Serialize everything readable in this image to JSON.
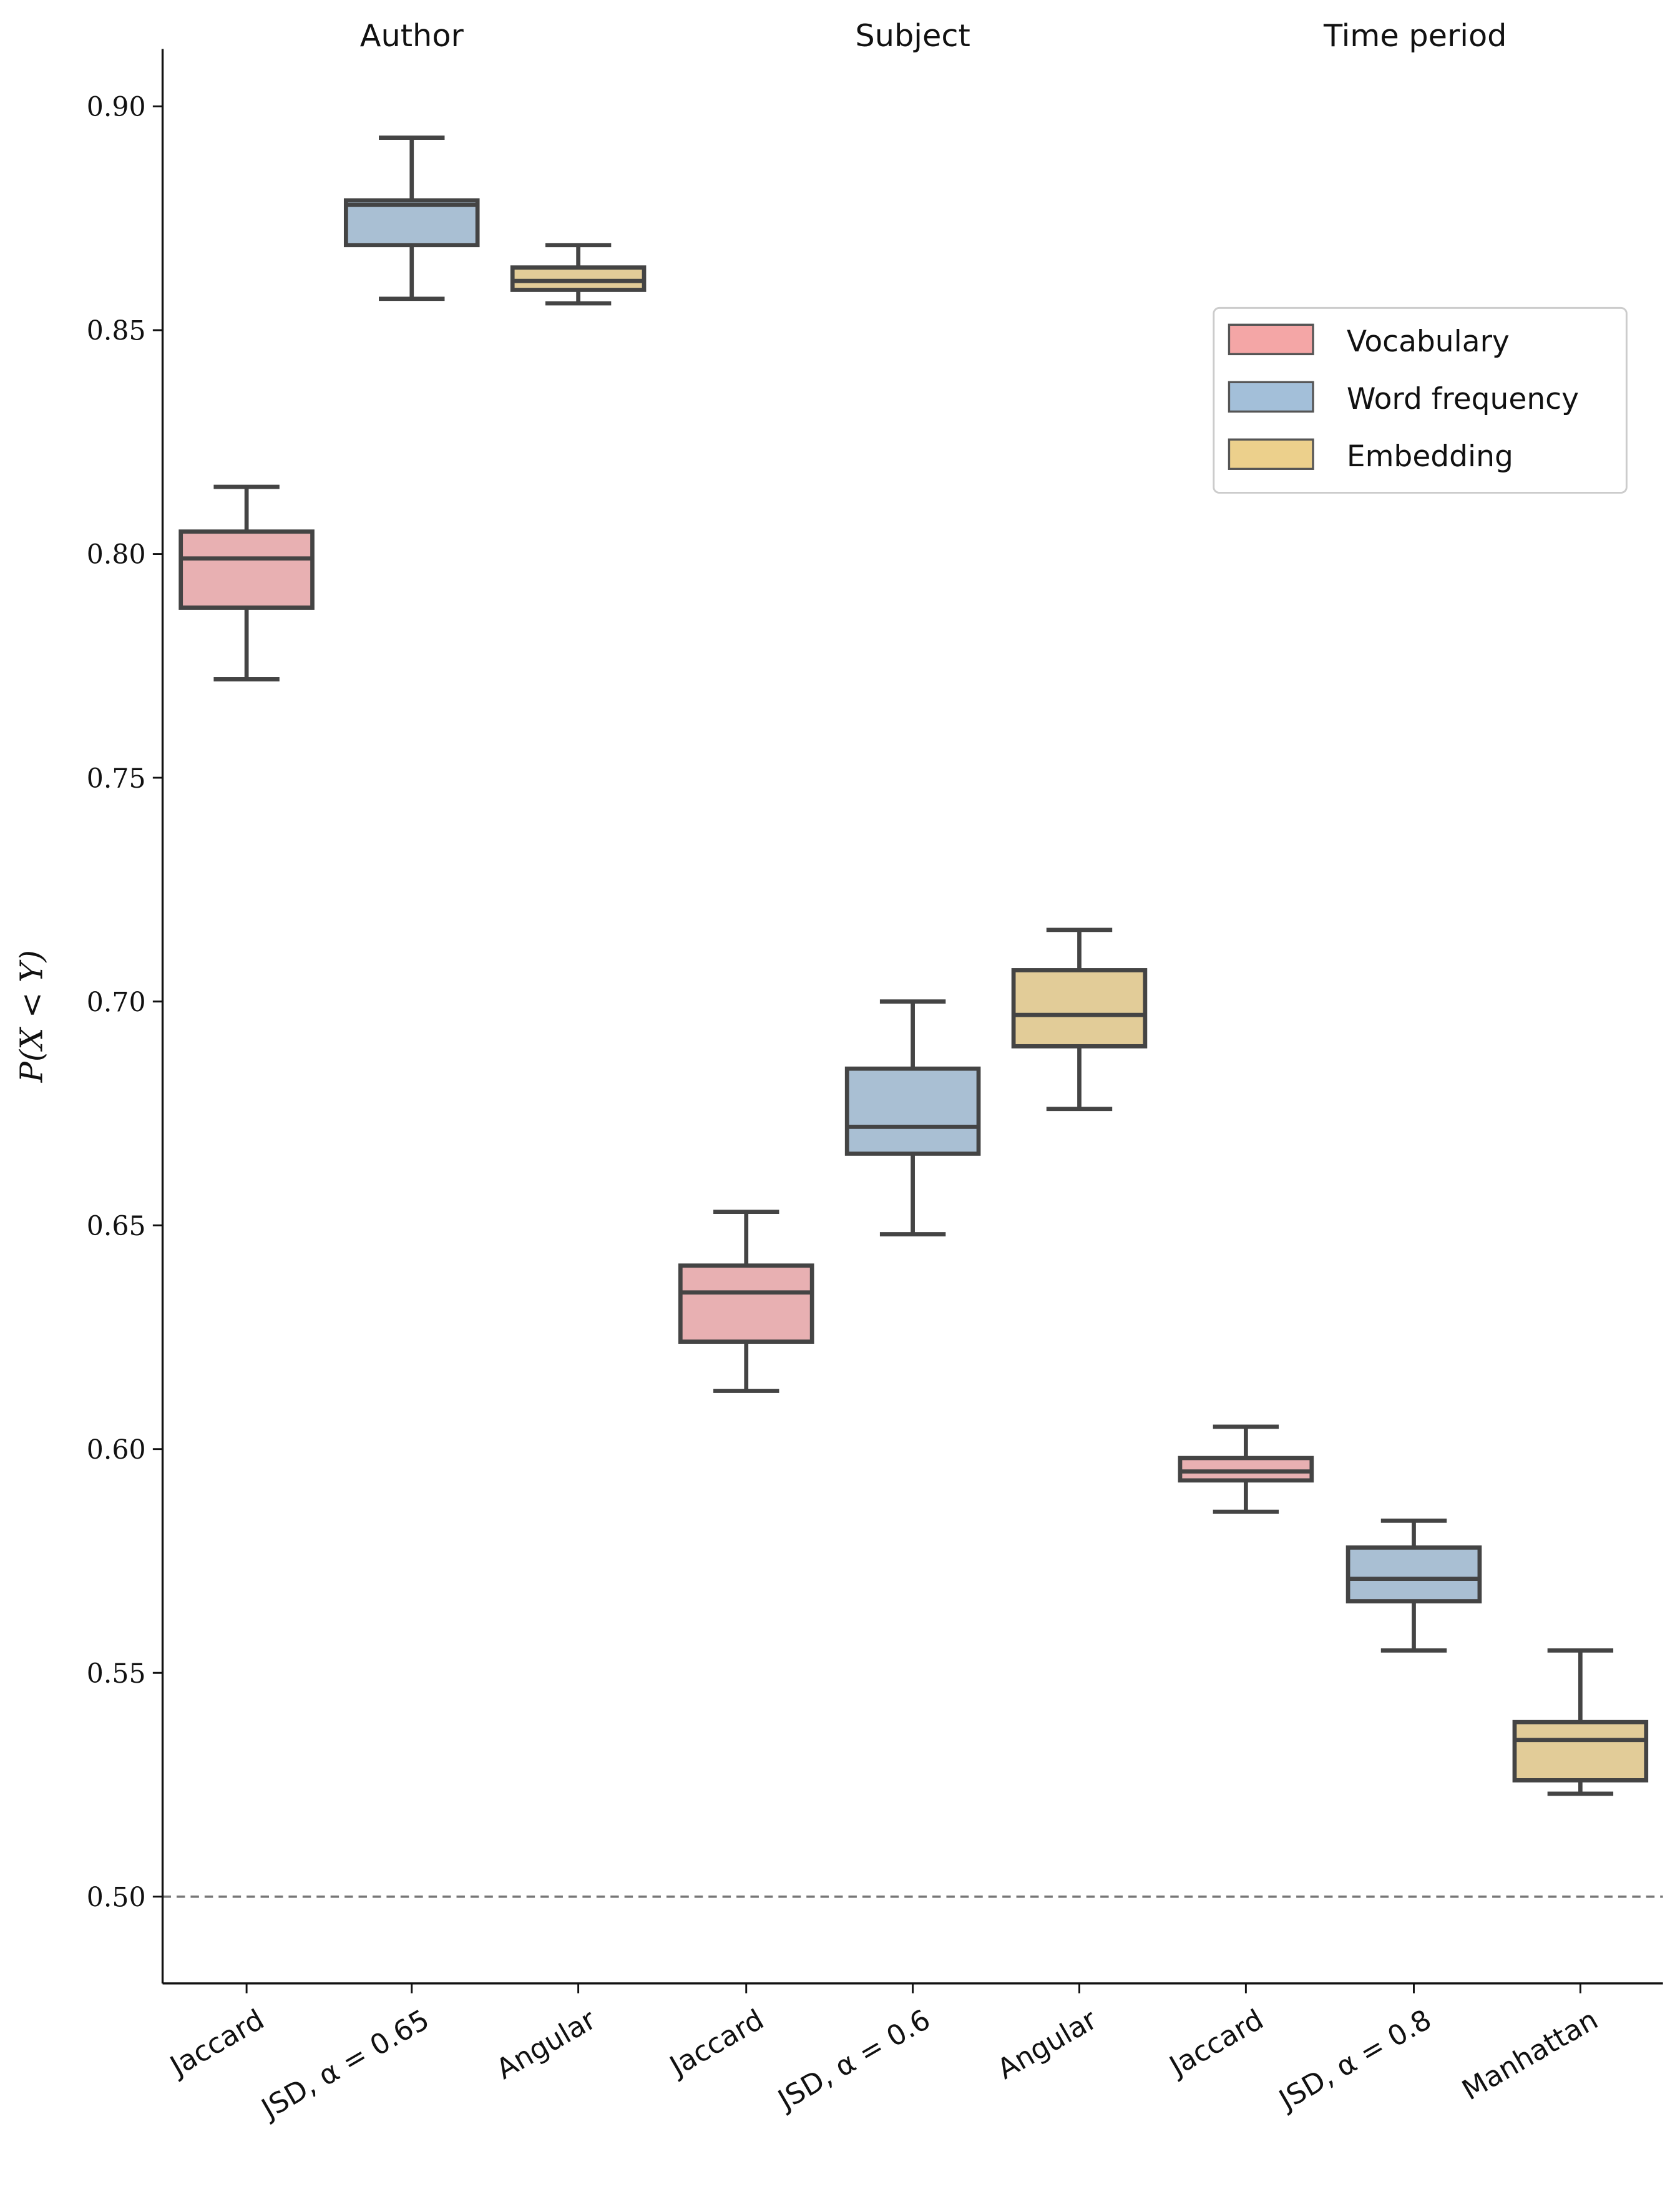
{
  "chart_data": {
    "type": "box",
    "ylabel": "P(X < Y)",
    "ylim": [
      0.48,
      0.913
    ],
    "yticks": [
      "0.50",
      "0.55",
      "0.60",
      "0.65",
      "0.70",
      "0.75",
      "0.80",
      "0.85",
      "0.90"
    ],
    "reference_line": 0.5,
    "groups": [
      "Author",
      "Subject",
      "Time period"
    ],
    "categories": [
      "Jaccard",
      "JSD, α = 0.65",
      "Angular",
      "Jaccard",
      "JSD, α = 0.6",
      "Angular",
      "Jaccard",
      "JSD, α = 0.8",
      "Manhattan"
    ],
    "series_of_category": [
      "Vocabulary",
      "Word frequency",
      "Embedding",
      "Vocabulary",
      "Word frequency",
      "Embedding",
      "Vocabulary",
      "Word frequency",
      "Embedding"
    ],
    "boxes": [
      {
        "min": 0.772,
        "q1": 0.788,
        "median": 0.799,
        "q3": 0.805,
        "max": 0.815
      },
      {
        "min": 0.857,
        "q1": 0.869,
        "median": 0.878,
        "q3": 0.879,
        "max": 0.893
      },
      {
        "min": 0.856,
        "q1": 0.859,
        "median": 0.861,
        "q3": 0.864,
        "max": 0.869
      },
      {
        "min": 0.613,
        "q1": 0.624,
        "median": 0.635,
        "q3": 0.641,
        "max": 0.653
      },
      {
        "min": 0.648,
        "q1": 0.666,
        "median": 0.672,
        "q3": 0.685,
        "max": 0.7
      },
      {
        "min": 0.676,
        "q1": 0.69,
        "median": 0.697,
        "q3": 0.707,
        "max": 0.716
      },
      {
        "min": 0.586,
        "q1": 0.593,
        "median": 0.595,
        "q3": 0.598,
        "max": 0.605
      },
      {
        "min": 0.555,
        "q1": 0.566,
        "median": 0.571,
        "q3": 0.578,
        "max": 0.584
      },
      {
        "min": 0.523,
        "q1": 0.526,
        "median": 0.535,
        "q3": 0.539,
        "max": 0.555
      }
    ],
    "legend": {
      "placement": "upper-right",
      "entries": [
        {
          "label": "Vocabulary",
          "color": "#f4a6a6",
          "box_color": "#e8b0b2"
        },
        {
          "label": "Word frequency",
          "color": "#a3bfd9",
          "box_color": "#a9bfd3"
        },
        {
          "label": "Embedding",
          "color": "#ecd08c",
          "box_color": "#e2cc98"
        }
      ]
    },
    "edge_color": "#444444"
  }
}
